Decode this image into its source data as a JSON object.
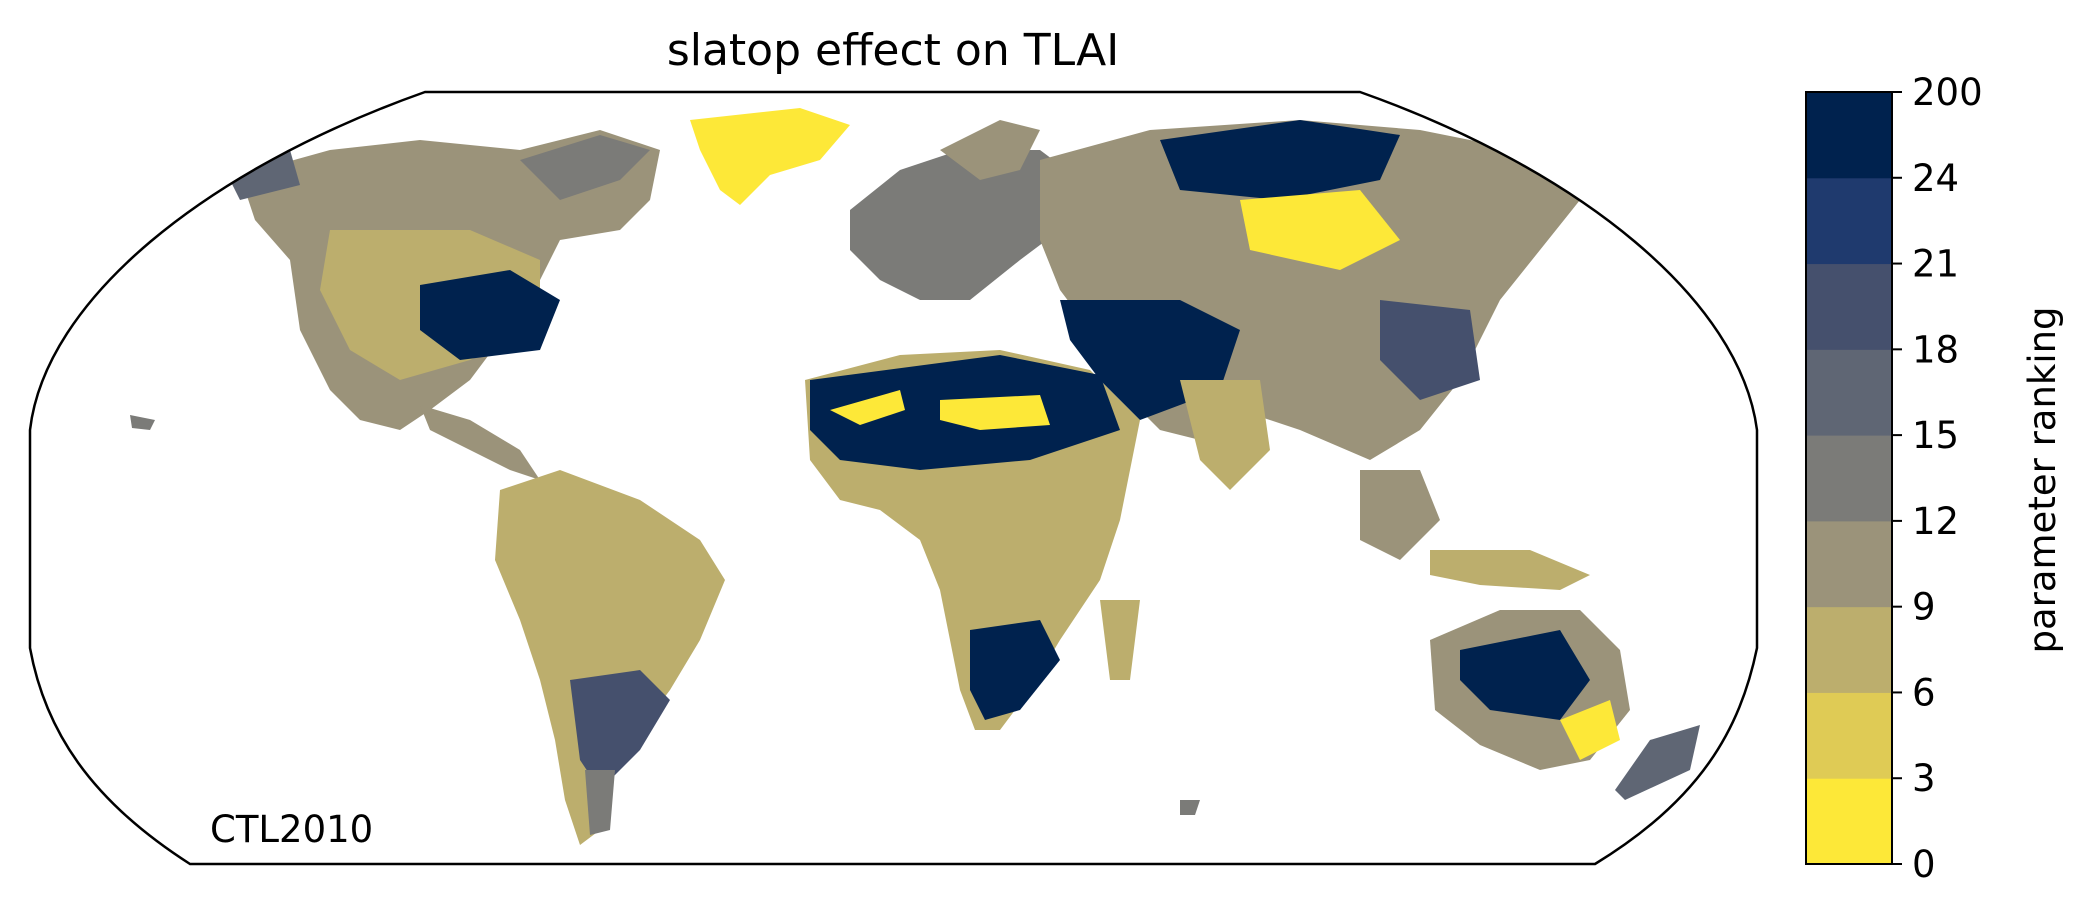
{
  "title": "slatop effect on TLAI",
  "annotation": "CTL2010",
  "colorbar": {
    "label": "parameter ranking",
    "ticks": [
      "0",
      "3",
      "6",
      "9",
      "12",
      "15",
      "18",
      "21",
      "24",
      "200"
    ],
    "colors": [
      "#fde838",
      "#dfcb55",
      "#bcae6d",
      "#9b937a",
      "#7b7b78",
      "#5f6674",
      "#45506d",
      "#1f3a6e",
      "#00224e"
    ]
  },
  "map": {
    "projection": "robinson",
    "land_color_default": "#bcae6d",
    "coast_color": "#808080"
  }
}
